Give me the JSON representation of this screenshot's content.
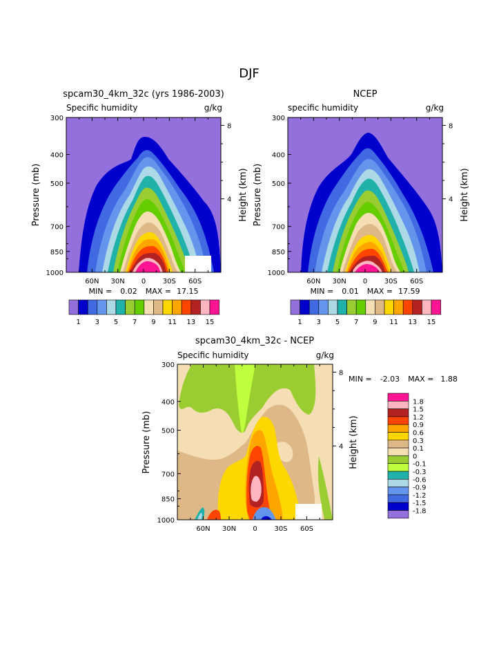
{
  "page_title": "DJF",
  "chart_data": [
    {
      "type": "contour",
      "title": "spcam30_4km_32c (yrs 1986-2003)",
      "subtitle_left": "Specific humidity",
      "subtitle_right": "g/kg",
      "ylabel": "Pressure (mb)",
      "ylabel_right": "Height (km)",
      "yticks": [
        "300",
        "400",
        "500",
        "700",
        "850",
        "1000"
      ],
      "yticks_right": [
        "8",
        "4"
      ],
      "xticks": [
        "60N",
        "30N",
        "0",
        "30S",
        "60S"
      ],
      "stats": {
        "min_label": "MIN =",
        "min": "0.02",
        "max_label": "MAX =",
        "max": "17.15"
      },
      "levels": [
        "1",
        "3",
        "5",
        "7",
        "9",
        "11",
        "13",
        "15"
      ]
    },
    {
      "type": "contour",
      "title": "NCEP",
      "subtitle_left": "specific humidity",
      "subtitle_right": "g/kg",
      "ylabel": "Pressure (mb)",
      "ylabel_right": "Height (km)",
      "yticks": [
        "300",
        "400",
        "500",
        "700",
        "850",
        "1000"
      ],
      "yticks_right": [
        "8",
        "4"
      ],
      "xticks": [
        "60N",
        "30N",
        "0",
        "30S",
        "60S"
      ],
      "stats": {
        "min_label": "MIN =",
        "min": "0.01",
        "max_label": "MAX =",
        "max": "17.59"
      },
      "levels": [
        "1",
        "3",
        "5",
        "7",
        "9",
        "11",
        "13",
        "15"
      ]
    },
    {
      "type": "contour",
      "title": "spcam30_4km_32c - NCEP",
      "subtitle_left": "Specific humidity",
      "subtitle_right": "g/kg",
      "ylabel": "Pressure (mb)",
      "ylabel_right": "Height (km)",
      "yticks": [
        "300",
        "400",
        "500",
        "700",
        "850",
        "1000"
      ],
      "yticks_right": [
        "8",
        "4"
      ],
      "xticks": [
        "60N",
        "30N",
        "0",
        "30S",
        "60S"
      ],
      "stats": {
        "min_label": "MIN =",
        "min": "-2.03",
        "max_label": "MAX =",
        "max": "1.88"
      },
      "levels": [
        "1.8",
        "1.5",
        "1.2",
        "0.9",
        "0.6",
        "0.3",
        "0.1",
        "0",
        "-0.1",
        "-0.3",
        "-0.6",
        "-0.9",
        "-1.2",
        "-1.5",
        "-1.8"
      ]
    }
  ],
  "colors": {
    "abs_scale": [
      "#9370db",
      "#0000cd",
      "#4169e1",
      "#6495ed",
      "#add8e6",
      "#20b2aa",
      "#9acd32",
      "#66cd00",
      "#f5deb3",
      "#deb887",
      "#ffd700",
      "#ffa500",
      "#ff4500",
      "#b22222",
      "#ffb6c1",
      "#ff1493"
    ],
    "diff_scale": [
      "#ff1493",
      "#ffb6c1",
      "#b22222",
      "#ff4500",
      "#ffa500",
      "#ffd700",
      "#deb887",
      "#f5deb3",
      "#9acd32",
      "#c0ff3e",
      "#20b2aa",
      "#add8e6",
      "#6495ed",
      "#4169e1",
      "#0000cd",
      "#9370db"
    ]
  }
}
